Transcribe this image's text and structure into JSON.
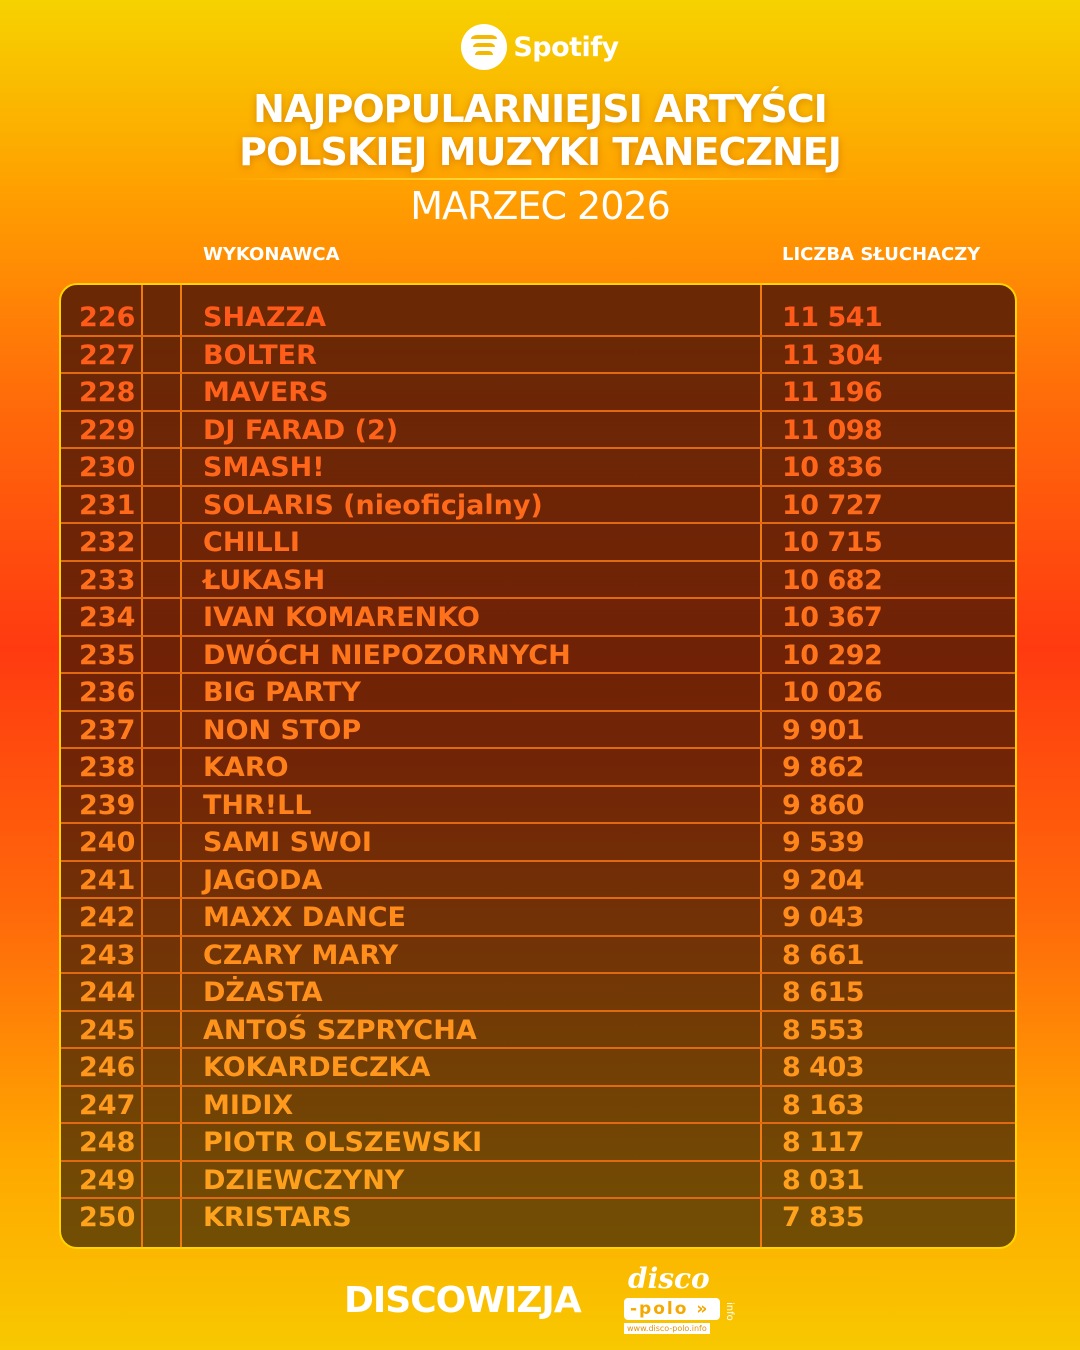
{
  "brand": {
    "name": "Spotify",
    "icon": "spotify-logo"
  },
  "header": {
    "title_line1": "NAJPOPULARNIEJSI ARTYŚCI",
    "title_line2": "POLSKIEJ MUZYKI TANECZNEJ",
    "subtitle": "MARZEC 2026"
  },
  "columns": {
    "artist": "WYKONAWCA",
    "listeners": "LICZBA SŁUCHACZY"
  },
  "colors": {
    "text_top": "#ff5a1a",
    "text_bottom": "#ffa31c",
    "border": "#ffd400"
  },
  "rows": [
    {
      "rank": "226",
      "name": "SHAZZA",
      "listeners": "11 541"
    },
    {
      "rank": "227",
      "name": "BOLTER",
      "listeners": "11 304"
    },
    {
      "rank": "228",
      "name": "MAVERS",
      "listeners": "11 196"
    },
    {
      "rank": "229",
      "name": "DJ FARAD (2)",
      "listeners": "11 098"
    },
    {
      "rank": "230",
      "name": "SMASH!",
      "listeners": "10 836"
    },
    {
      "rank": "231",
      "name": "SOLARIS (nieoficjalny)",
      "listeners": "10 727"
    },
    {
      "rank": "232",
      "name": "CHILLI",
      "listeners": "10 715"
    },
    {
      "rank": "233",
      "name": "ŁUKASH",
      "listeners": "10 682"
    },
    {
      "rank": "234",
      "name": "IVAN KOMARENKO",
      "listeners": "10 367"
    },
    {
      "rank": "235",
      "name": "DWÓCH NIEPOZORNYCH",
      "listeners": "10 292"
    },
    {
      "rank": "236",
      "name": "BIG PARTY",
      "listeners": "10 026"
    },
    {
      "rank": "237",
      "name": "NON STOP",
      "listeners": "9 901"
    },
    {
      "rank": "238",
      "name": "KARO",
      "listeners": "9 862"
    },
    {
      "rank": "239",
      "name": "THR!LL",
      "listeners": "9 860"
    },
    {
      "rank": "240",
      "name": "SAMI SWOI",
      "listeners": "9 539"
    },
    {
      "rank": "241",
      "name": "JAGODA",
      "listeners": "9 204"
    },
    {
      "rank": "242",
      "name": "MAXX DANCE",
      "listeners": "9 043"
    },
    {
      "rank": "243",
      "name": "CZARY MARY",
      "listeners": "8 661"
    },
    {
      "rank": "244",
      "name": "DŻASTA",
      "listeners": "8 615"
    },
    {
      "rank": "245",
      "name": "ANTOŚ SZPRYCHA",
      "listeners": "8 553"
    },
    {
      "rank": "246",
      "name": "KOKARDECZKA",
      "listeners": "8 403"
    },
    {
      "rank": "247",
      "name": "MIDIX",
      "listeners": "8 163"
    },
    {
      "rank": "248",
      "name": "PIOTR OLSZEWSKI",
      "listeners": "8 117"
    },
    {
      "rank": "249",
      "name": "DZIEWCZYNY",
      "listeners": "8 031"
    },
    {
      "rank": "250",
      "name": "KRISTARS",
      "listeners": "7 835"
    }
  ],
  "footer": {
    "discowizja": "DISCOWIZJA",
    "dp_disco": "disco",
    "dp_polo": "-polo »",
    "dp_info": "info",
    "dp_url": "www.disco-polo.info"
  }
}
